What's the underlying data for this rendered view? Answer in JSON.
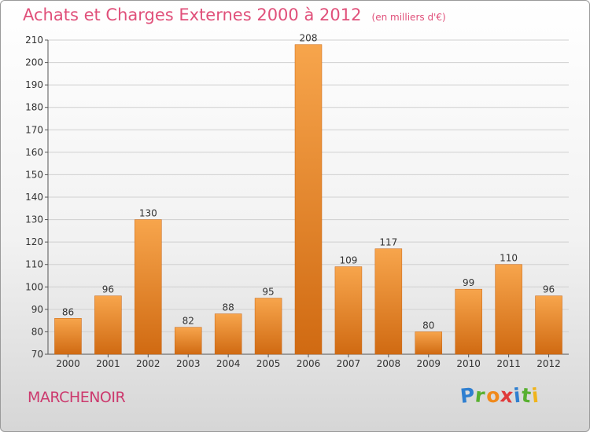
{
  "chart_data": {
    "type": "bar",
    "title": "Achats et Charges Externes 2000 à 2012",
    "subtitle": "(en milliers d'€)",
    "categories": [
      "2000",
      "2001",
      "2002",
      "2003",
      "2004",
      "2005",
      "2006",
      "2007",
      "2008",
      "2009",
      "2010",
      "2011",
      "2012"
    ],
    "values": [
      86,
      96,
      130,
      82,
      88,
      95,
      208,
      109,
      117,
      80,
      99,
      110,
      96
    ],
    "ylim": [
      70,
      210
    ],
    "yticks": [
      70,
      80,
      90,
      100,
      110,
      120,
      130,
      140,
      150,
      160,
      170,
      180,
      190,
      200,
      210
    ],
    "xlabel": "",
    "ylabel": "",
    "grid": true,
    "bar_color_top": "#f7a54c",
    "bar_color_bottom": "#d06a12"
  },
  "footer": {
    "place": "MARCHENOIR",
    "logo_letters": [
      {
        "ch": "P",
        "color": "#2f7fd0"
      },
      {
        "ch": "r",
        "color": "#58b030"
      },
      {
        "ch": "o",
        "color": "#f08a1c"
      },
      {
        "ch": "x",
        "color": "#e03a3a"
      },
      {
        "ch": "i",
        "color": "#2f7fd0"
      },
      {
        "ch": "t",
        "color": "#58b030"
      },
      {
        "ch": "i",
        "color": "#f0b41c"
      }
    ]
  }
}
